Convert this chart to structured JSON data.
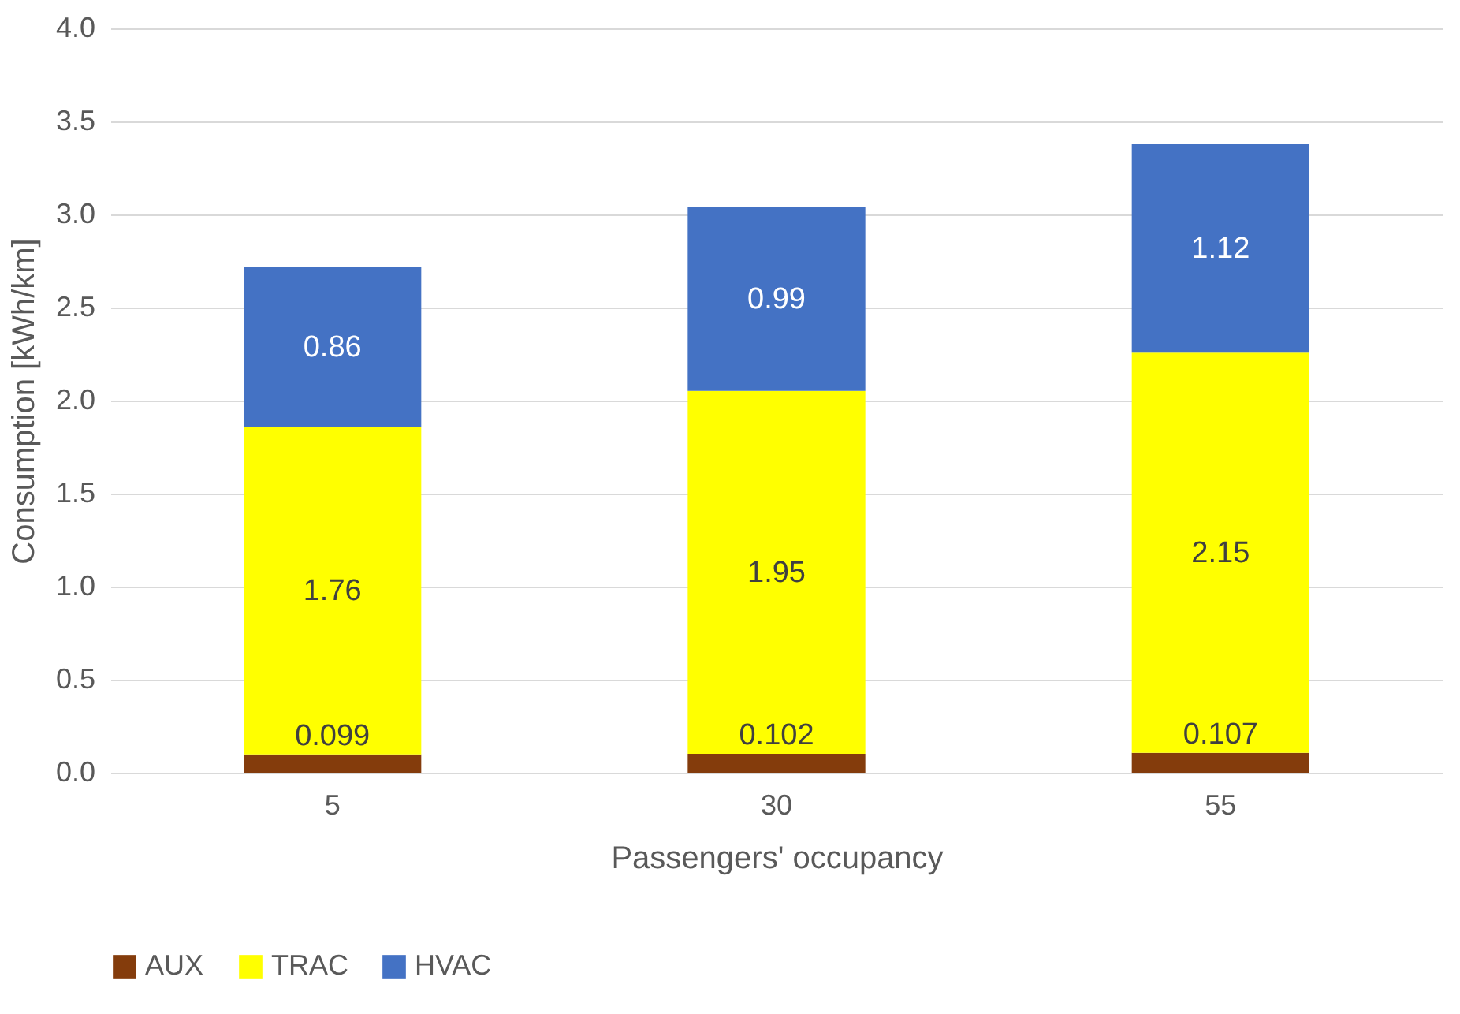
{
  "chart_data": {
    "type": "bar",
    "stacked": true,
    "xlabel": "Passengers' occupancy",
    "ylabel": "Consumption [kWh/km]",
    "categories": [
      "5",
      "30",
      "55"
    ],
    "series": [
      {
        "name": "AUX",
        "color": "#843c0c",
        "values": [
          0.099,
          0.102,
          0.107
        ]
      },
      {
        "name": "TRAC",
        "color": "#ffff00",
        "values": [
          1.76,
          1.95,
          2.15
        ]
      },
      {
        "name": "HVAC",
        "color": "#4472c4",
        "values": [
          0.86,
          0.99,
          1.12
        ]
      }
    ],
    "ylim": [
      0,
      4
    ],
    "yticks": [
      {
        "value": 0,
        "label": "0.0"
      },
      {
        "value": 0.5,
        "label": "0.5"
      },
      {
        "value": 1,
        "label": "1.0"
      },
      {
        "value": 1.5,
        "label": "1.5"
      },
      {
        "value": 2,
        "label": "2.0"
      },
      {
        "value": 2.5,
        "label": "2.5"
      },
      {
        "value": 3,
        "label": "3.0"
      },
      {
        "value": 3.5,
        "label": "3.5"
      },
      {
        "value": 4,
        "label": "4.0"
      }
    ],
    "grid": "y",
    "legend": "bottom",
    "data_labels": true
  }
}
